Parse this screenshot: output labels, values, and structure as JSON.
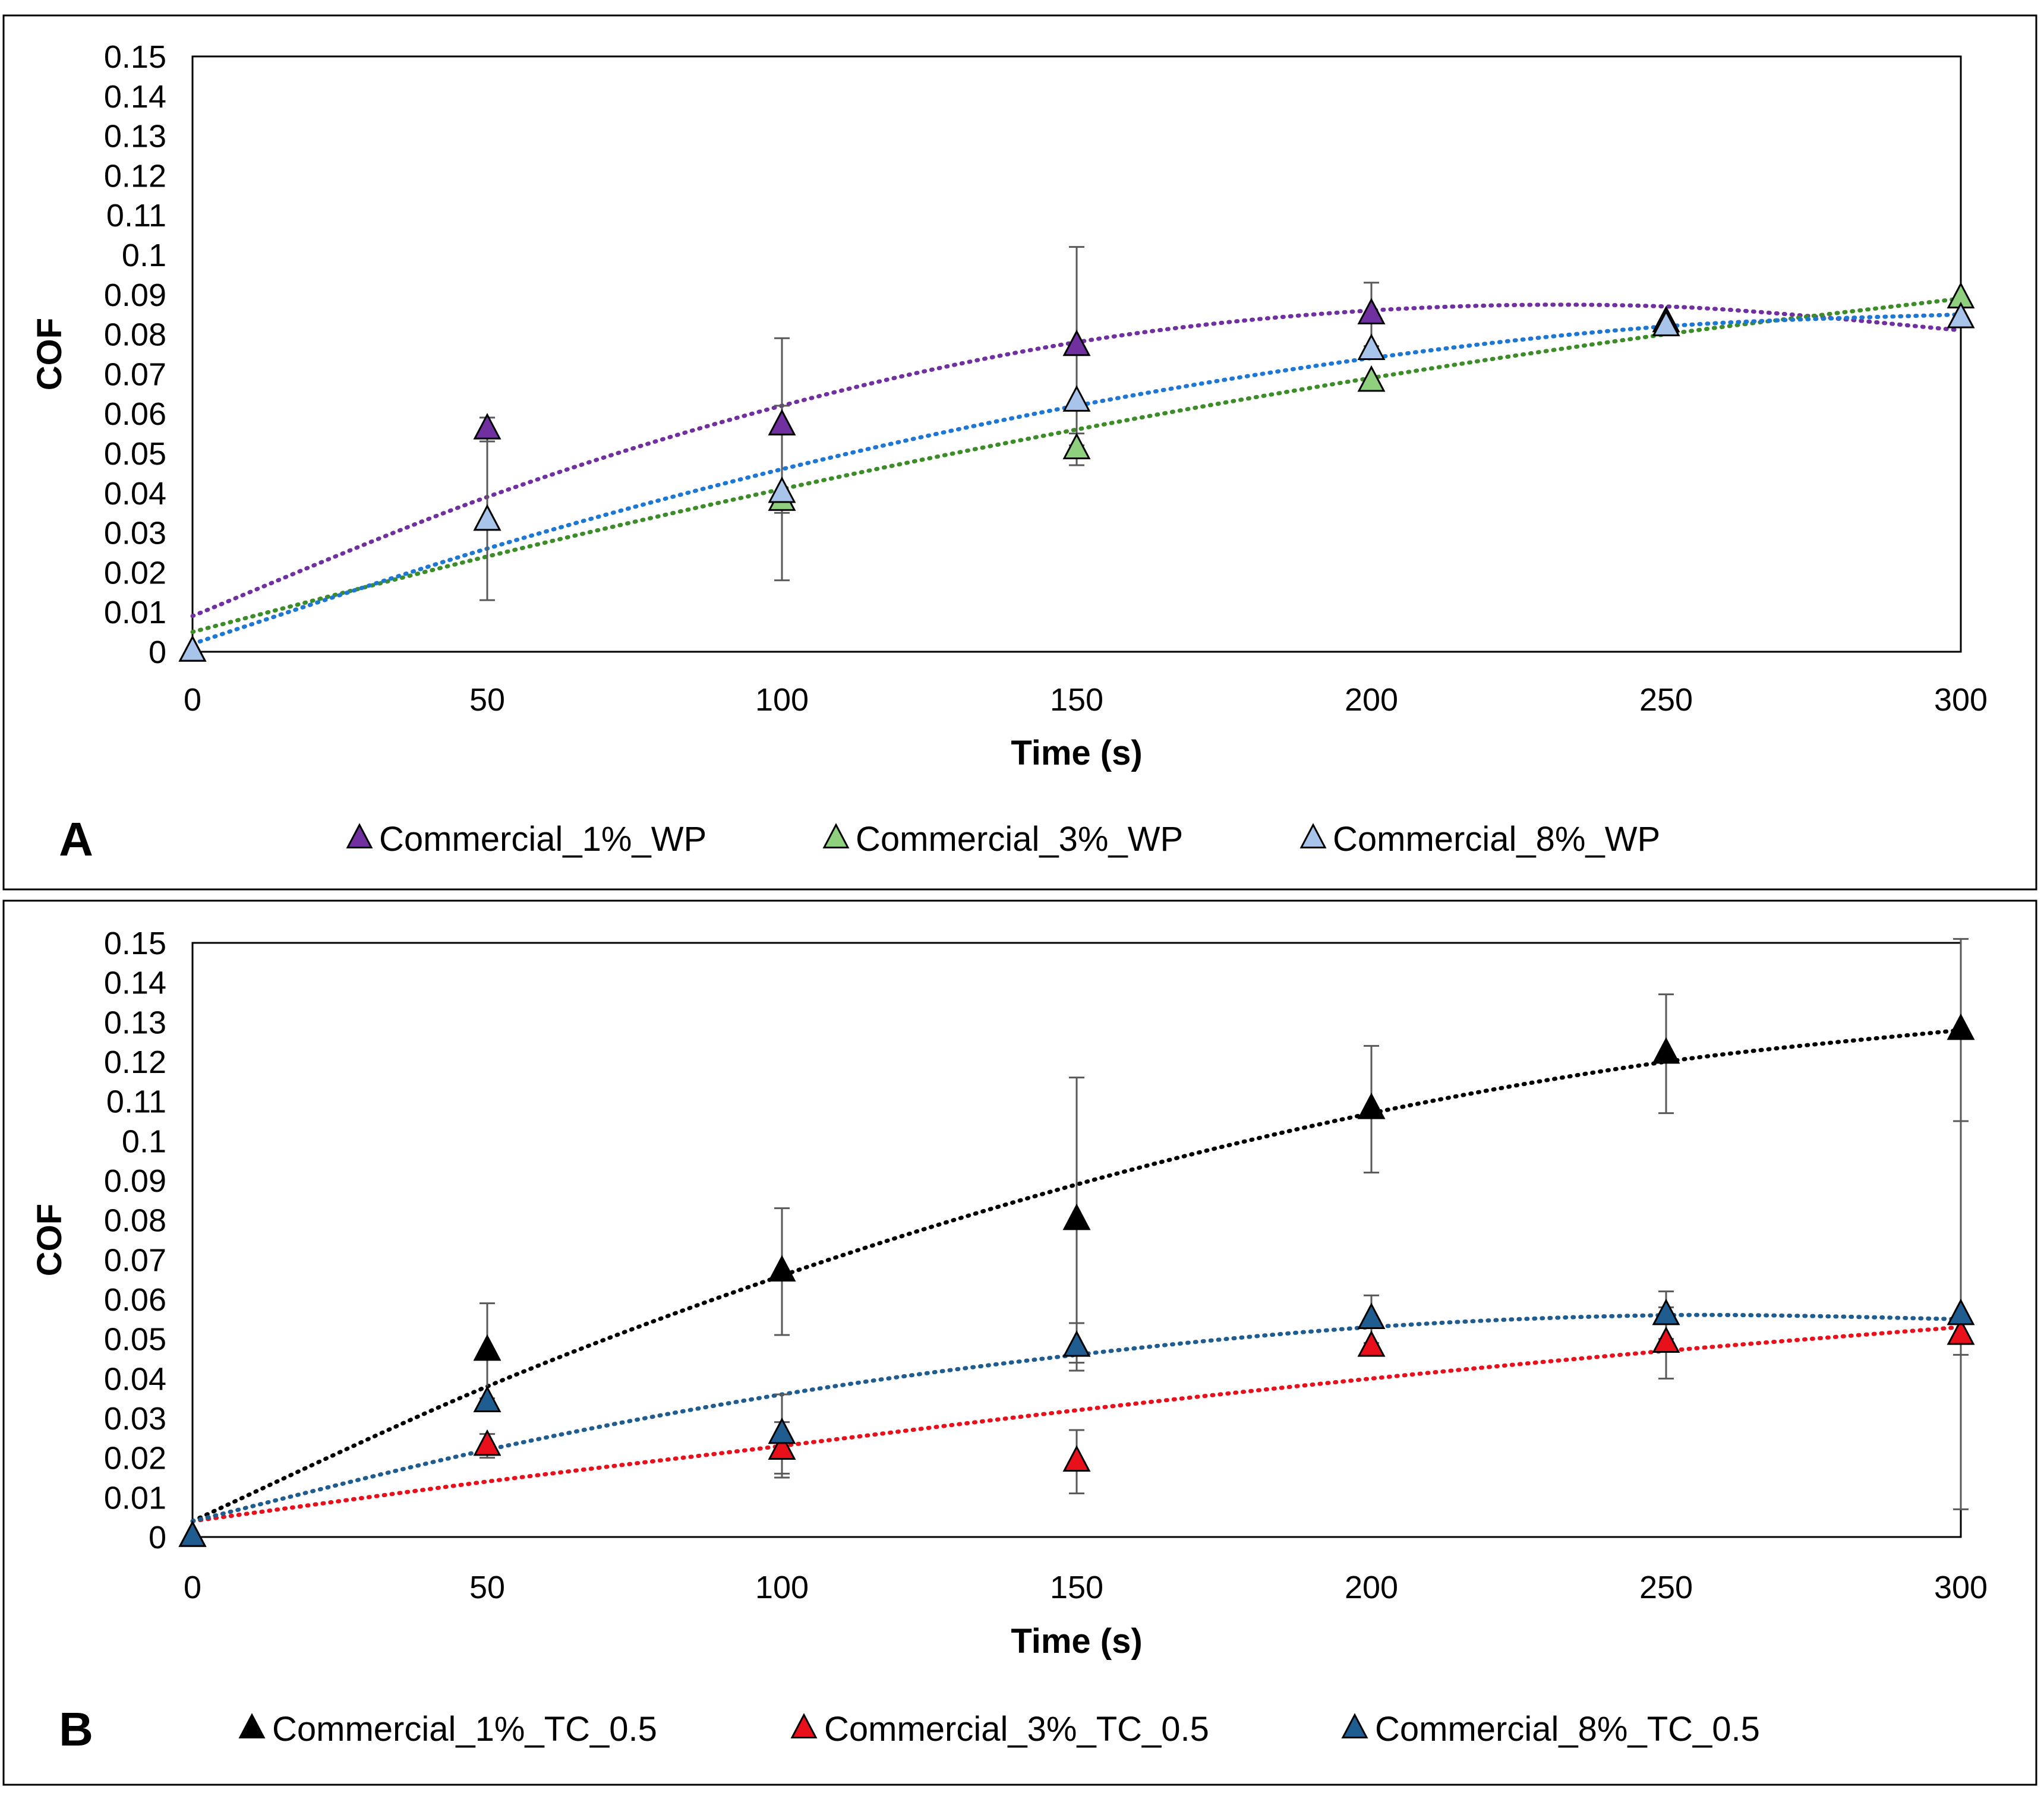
{
  "chart_data": [
    {
      "type": "scatter",
      "panel_label": "A",
      "xlabel": "Time (s)",
      "ylabel": "COF",
      "xlim": [
        0,
        300
      ],
      "ylim": [
        0,
        0.15
      ],
      "xticks": [
        0,
        50,
        100,
        150,
        200,
        250,
        300
      ],
      "xtick_labels": [
        "0",
        "50",
        "100",
        "150",
        "200",
        "250",
        "300"
      ],
      "yticks": [
        0,
        0.01,
        0.02,
        0.03,
        0.04,
        0.05,
        0.06,
        0.07,
        0.08,
        0.09,
        0.1,
        0.11,
        0.12,
        0.13,
        0.14,
        0.15
      ],
      "ytick_labels": [
        "0",
        "0.01",
        "0.02",
        "0.03",
        "0.04",
        "0.05",
        "0.06",
        "0.07",
        "0.08",
        "0.09",
        "0.1",
        "0.11",
        "0.12",
        "0.13",
        "0.14",
        "0.15"
      ],
      "grid": false,
      "legend_position": "bottom",
      "marker": "triangle",
      "trendline": "polynomial (dotted)",
      "series": [
        {
          "name": "Commercial_1%_WP",
          "color": "#7030A0",
          "trend_color": "#7030A0",
          "x": [
            0,
            50,
            100,
            150,
            200,
            250,
            300
          ],
          "y": [
            0,
            0.056,
            0.057,
            0.077,
            0.085,
            0.083,
            0.084
          ],
          "err": [
            0,
            0.003,
            0.022,
            0.025,
            0.008,
            0,
            0
          ]
        },
        {
          "name": "Commercial_3%_WP",
          "color": "#8FD07F",
          "trend_color": "#3C8C28",
          "x": [
            0,
            50,
            100,
            150,
            200,
            250,
            300
          ],
          "y": [
            0,
            0.033,
            0.038,
            0.051,
            0.068,
            0.082,
            0.089
          ],
          "err": [
            0,
            0,
            0,
            0.004,
            0,
            0,
            0
          ]
        },
        {
          "name": "Commercial_8%_WP",
          "color": "#A9C4EB",
          "trend_color": "#1F77D4",
          "x": [
            0,
            50,
            100,
            150,
            200,
            250,
            300
          ],
          "y": [
            0,
            0.033,
            0.04,
            0.063,
            0.076,
            0.082,
            0.084
          ],
          "err": [
            0,
            0.02,
            0.022,
            0,
            0,
            0,
            0
          ]
        }
      ],
      "trendlines": [
        {
          "series": "Commercial_1%_WP",
          "color": "#7030A0",
          "x": [
            0,
            50,
            100,
            150,
            200,
            250,
            300
          ],
          "y": [
            0.009,
            0.039,
            0.062,
            0.078,
            0.086,
            0.087,
            0.081
          ]
        },
        {
          "series": "Commercial_3%_WP",
          "color": "#3C8C28",
          "x": [
            0,
            50,
            100,
            150,
            200,
            250,
            300
          ],
          "y": [
            0.005,
            0.024,
            0.041,
            0.056,
            0.069,
            0.08,
            0.089
          ]
        },
        {
          "series": "Commercial_8%_WP",
          "color": "#1F77D4",
          "x": [
            0,
            50,
            100,
            150,
            200,
            250,
            300
          ],
          "y": [
            0.002,
            0.026,
            0.046,
            0.062,
            0.074,
            0.082,
            0.085
          ]
        }
      ]
    },
    {
      "type": "scatter",
      "panel_label": "B",
      "xlabel": "Time (s)",
      "ylabel": "COF",
      "xlim": [
        0,
        300
      ],
      "ylim": [
        0,
        0.15
      ],
      "xticks": [
        0,
        50,
        100,
        150,
        200,
        250,
        300
      ],
      "xtick_labels": [
        "0",
        "50",
        "100",
        "150",
        "200",
        "250",
        "300"
      ],
      "yticks": [
        0,
        0.01,
        0.02,
        0.03,
        0.04,
        0.05,
        0.06,
        0.07,
        0.08,
        0.09,
        0.1,
        0.11,
        0.12,
        0.13,
        0.14,
        0.15
      ],
      "ytick_labels": [
        "0",
        "0.01",
        "0.02",
        "0.03",
        "0.04",
        "0.05",
        "0.06",
        "0.07",
        "0.08",
        "0.09",
        "0.1",
        "0.11",
        "0.12",
        "0.13",
        "0.14",
        "0.15"
      ],
      "grid": false,
      "legend_position": "bottom",
      "marker": "triangle",
      "trendline": "polynomial (dotted)",
      "series": [
        {
          "name": "Commercial_1%_TC_0.5",
          "color": "#000000",
          "trend_color": "#000000",
          "x": [
            0,
            50,
            100,
            150,
            200,
            250,
            300
          ],
          "y": [
            0,
            0.047,
            0.067,
            0.08,
            0.108,
            0.122,
            0.128
          ],
          "err": [
            0,
            0.012,
            0.016,
            0.036,
            0.016,
            0.015,
            0.023
          ]
        },
        {
          "name": "Commercial_3%_TC_0.5",
          "color": "#E8101A",
          "trend_color": "#E8101A",
          "x": [
            0,
            50,
            100,
            150,
            200,
            250,
            300
          ],
          "y": [
            0,
            0.023,
            0.022,
            0.019,
            0.048,
            0.049,
            0.051
          ],
          "err": [
            0,
            0.003,
            0.007,
            0.008,
            0,
            0.009,
            0.005
          ]
        },
        {
          "name": "Commercial_8%_TC_0.5",
          "color": "#1F5C8F",
          "trend_color": "#1F5C8F",
          "x": [
            0,
            50,
            100,
            150,
            200,
            250,
            300
          ],
          "y": [
            0,
            0.034,
            0.026,
            0.048,
            0.055,
            0.056,
            0.056
          ],
          "err": [
            0,
            0,
            0.01,
            0.006,
            0.006,
            0.006,
            0.049
          ]
        }
      ],
      "trendlines": [
        {
          "series": "Commercial_1%_TC_0.5",
          "color": "#000000",
          "x": [
            0,
            50,
            100,
            150,
            200,
            250,
            300
          ],
          "y": [
            0.004,
            0.038,
            0.066,
            0.089,
            0.107,
            0.12,
            0.128
          ]
        },
        {
          "series": "Commercial_3%_TC_0.5",
          "color": "#E8101A",
          "x": [
            0,
            50,
            100,
            150,
            200,
            250,
            300
          ],
          "y": [
            0.004,
            0.014,
            0.023,
            0.032,
            0.04,
            0.047,
            0.053
          ]
        },
        {
          "series": "Commercial_8%_TC_0.5",
          "color": "#1F5C8F",
          "x": [
            0,
            50,
            100,
            150,
            200,
            250,
            300
          ],
          "y": [
            0.004,
            0.022,
            0.036,
            0.046,
            0.053,
            0.056,
            0.055
          ]
        }
      ]
    }
  ]
}
